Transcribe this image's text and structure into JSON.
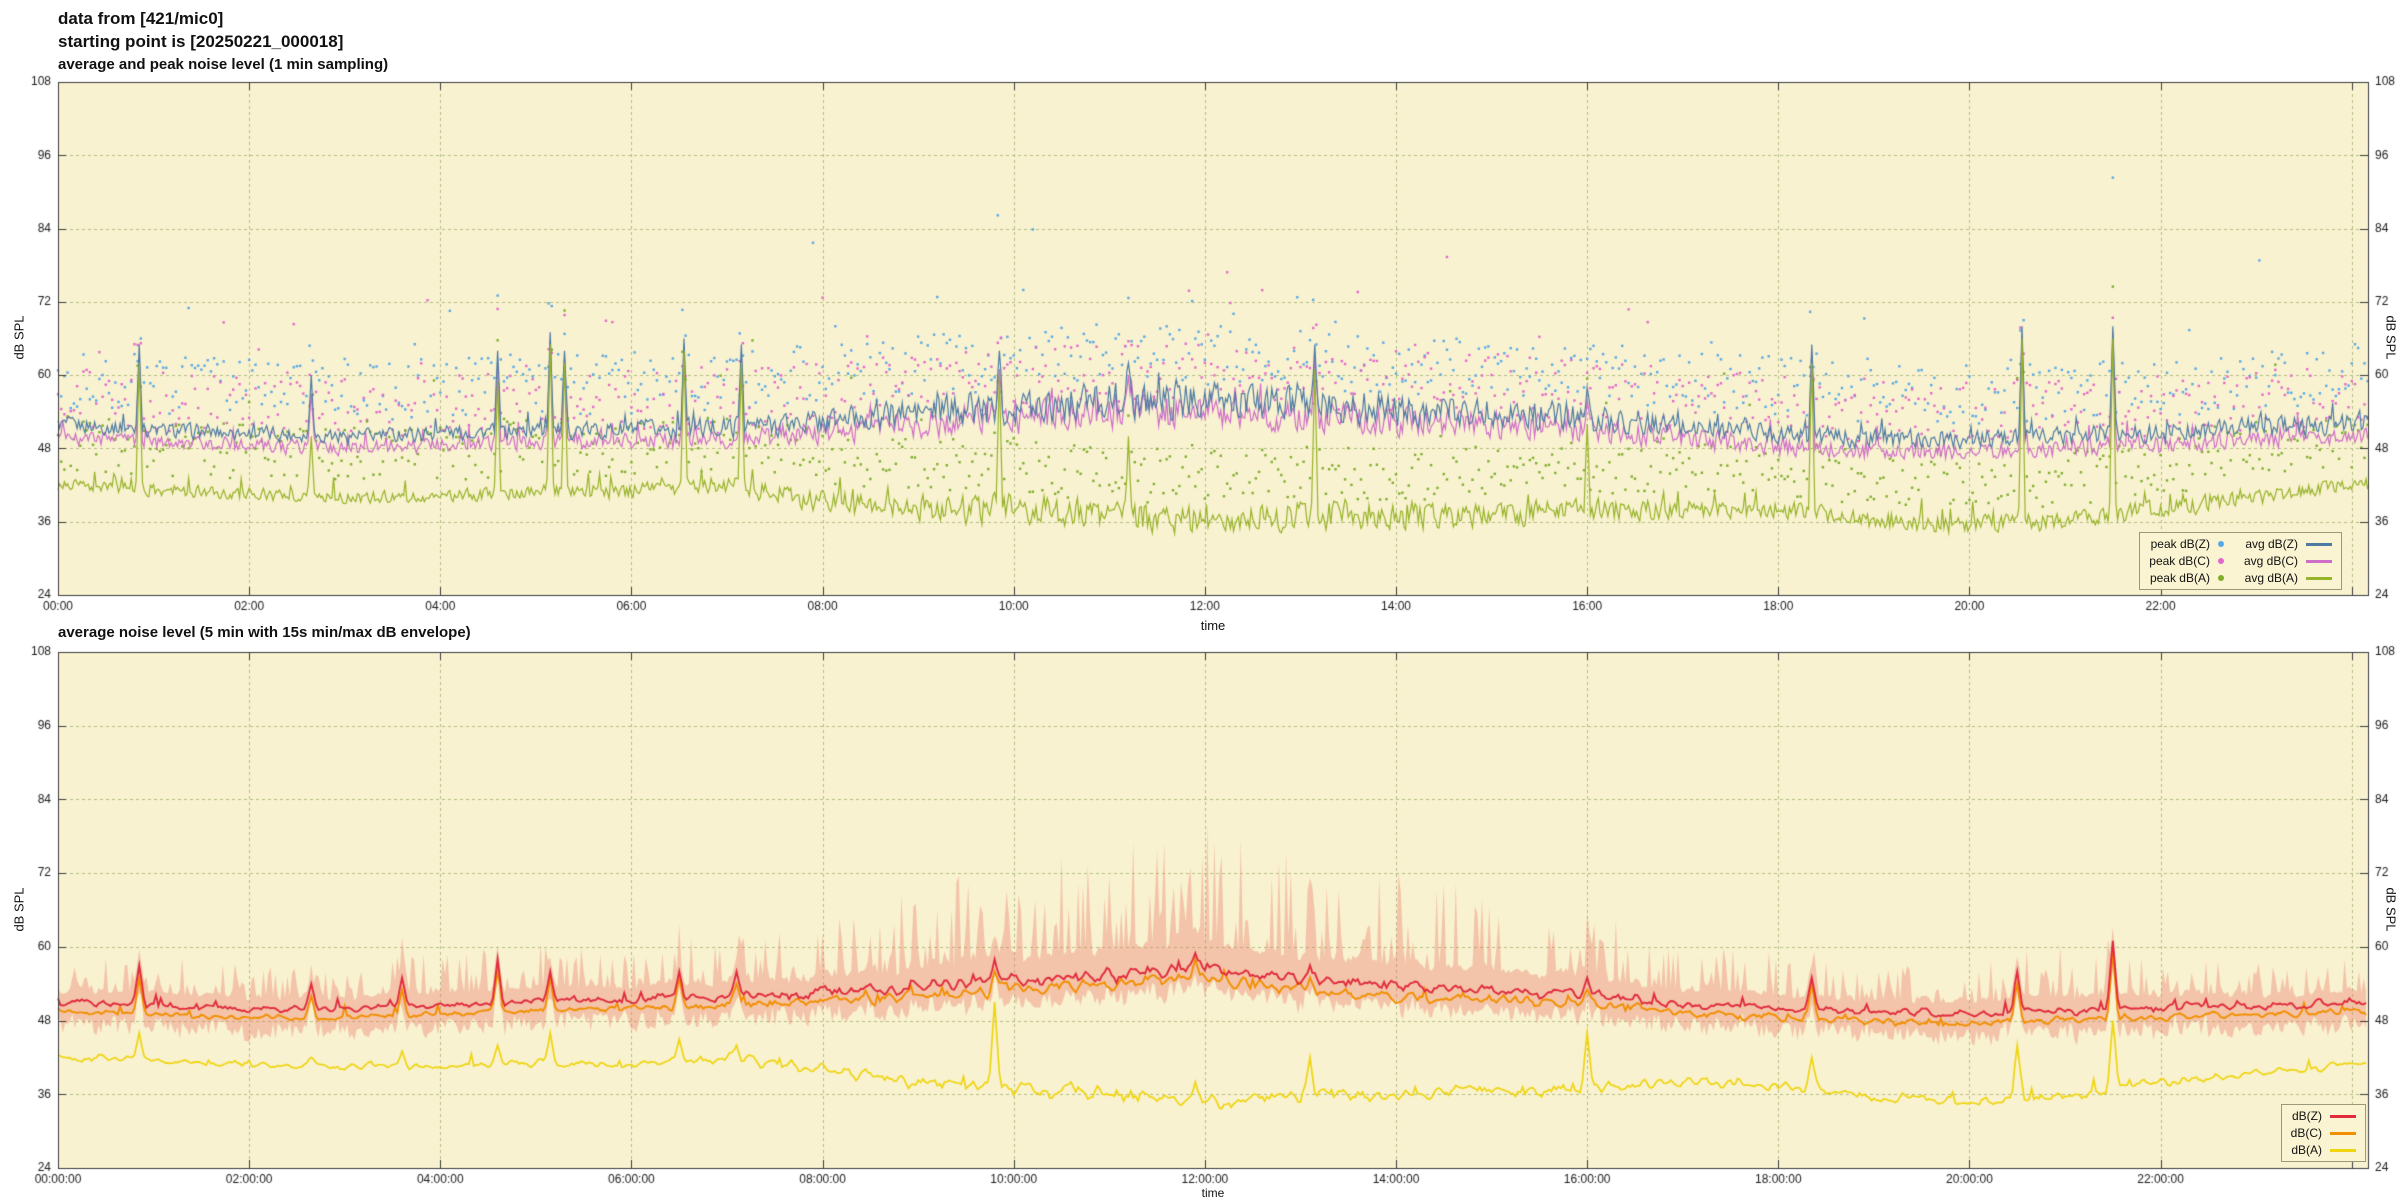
{
  "header": {
    "line1": "data from [421/mic0]",
    "line2": "starting point is [20250221_000018]"
  },
  "style": {
    "plot_bg": "#f9f2d0",
    "grid": "#b2bf83",
    "border": "#3a3a3a",
    "text": "#1a1a1a",
    "envelope": "rgba(234,120,104,0.38)"
  },
  "chart_data": [
    {
      "type": "line",
      "title": "average and peak noise level (1 min sampling)",
      "xlabel": "time",
      "ylabel": "dB SPL",
      "ylabel_right": "dB SPL",
      "xlim": [
        0,
        24.17
      ],
      "ylim": [
        24,
        108
      ],
      "grid": true,
      "yticks": [
        24,
        36,
        48,
        60,
        72,
        84,
        96,
        108
      ],
      "xtick_hours": [
        0,
        2,
        4,
        6,
        8,
        10,
        12,
        14,
        16,
        18,
        20,
        22,
        24
      ],
      "xtick_labels": [
        "00:00",
        "02:00",
        "04:00",
        "06:00",
        "08:00",
        "10:00",
        "12:00",
        "14:00",
        "16:00",
        "18:00",
        "20:00",
        "22:00",
        ""
      ],
      "anchor_hours": [
        0,
        1,
        2,
        3,
        4,
        5,
        6,
        7,
        8,
        9,
        10,
        11,
        12,
        13,
        14,
        15,
        16,
        17,
        18,
        19,
        20,
        21,
        22,
        23,
        24
      ],
      "series": [
        {
          "name": "avg dB(Z)",
          "type": "line",
          "color": "#4e7ba3",
          "width": 1.2,
          "spike_key": "z",
          "values": [
            52,
            51,
            50.5,
            50,
            50.5,
            51,
            51,
            51.5,
            52.5,
            54,
            55,
            56,
            56,
            55,
            54.5,
            54,
            53,
            51.5,
            50.5,
            49.5,
            49.5,
            50,
            50.5,
            51.5,
            52
          ],
          "jitter": [
            1.5,
            1.5,
            1.5,
            1.5,
            1.5,
            1.5,
            1.8,
            2.0,
            2.5,
            3.0,
            3.5,
            3.5,
            3.5,
            3.5,
            3.2,
            3.0,
            2.8,
            2.2,
            2.0,
            1.8,
            1.8,
            1.8,
            2.0,
            2.0,
            2.0
          ]
        },
        {
          "name": "avg dB(C)",
          "type": "line",
          "color": "#cf6ec8",
          "width": 1.2,
          "spike_key": "c",
          "values": [
            50,
            49,
            48.5,
            48,
            48.5,
            49,
            49,
            49.5,
            50.5,
            52,
            53,
            54,
            54,
            53,
            52.5,
            52,
            51,
            49.5,
            48.5,
            47.5,
            47.5,
            48,
            48.5,
            49.5,
            50
          ],
          "jitter": [
            1.4,
            1.4,
            1.4,
            1.4,
            1.4,
            1.4,
            1.6,
            1.8,
            2.2,
            2.7,
            3.2,
            3.2,
            3.2,
            3.2,
            2.9,
            2.7,
            2.5,
            2.0,
            1.8,
            1.6,
            1.6,
            1.6,
            1.8,
            1.8,
            1.8
          ]
        },
        {
          "name": "avg dB(A)",
          "type": "line",
          "color": "#97b329",
          "width": 1.2,
          "spike_key": "a",
          "values": [
            42,
            41,
            40.5,
            40,
            40,
            41,
            41,
            42,
            39.5,
            38,
            38,
            37,
            36,
            37,
            37,
            37,
            38,
            38,
            38,
            36,
            35.5,
            36,
            38,
            40,
            42
          ],
          "jitter": [
            1.2,
            1.2,
            1.2,
            1.2,
            1.2,
            1.3,
            1.5,
            1.8,
            2.2,
            2.5,
            2.8,
            2.8,
            2.8,
            2.8,
            2.6,
            2.4,
            2.2,
            2.0,
            1.8,
            1.8,
            1.8,
            1.8,
            1.8,
            1.5,
            1.3
          ]
        },
        {
          "name": "peak dB(Z)",
          "type": "points",
          "color": "#57a9e6",
          "base": "avg dB(Z)",
          "offset": 7.5,
          "spread": 5,
          "outlier_rate": 0.03,
          "outlier_extra": 16
        },
        {
          "name": "peak dB(C)",
          "type": "points",
          "color": "#e468ca",
          "base": "avg dB(C)",
          "offset": 6.5,
          "spread": 5,
          "outlier_rate": 0.025,
          "outlier_extra": 14
        },
        {
          "name": "peak dB(A)",
          "type": "points",
          "color": "#7fae2e",
          "base": "avg dB(A)",
          "offset": 7,
          "spread": 4.5,
          "outlier_rate": 0.02,
          "outlier_extra": 12
        }
      ],
      "spikes": [
        {
          "t": 0.85,
          "z": 65,
          "c": 63,
          "a": 62
        },
        {
          "t": 2.65,
          "z": 60,
          "c": 57,
          "a": 50
        },
        {
          "t": 4.6,
          "z": 64,
          "c": 62,
          "a": 59
        },
        {
          "t": 5.15,
          "z": 67,
          "c": 66,
          "a": 65
        },
        {
          "t": 5.3,
          "z": 64,
          "c": 63,
          "a": 62
        },
        {
          "t": 6.55,
          "z": 66,
          "c": 65,
          "a": 64
        },
        {
          "t": 7.15,
          "z": 65,
          "c": 63,
          "a": 62
        },
        {
          "t": 9.85,
          "z": 64,
          "c": 61,
          "a": 60
        },
        {
          "t": 11.2,
          "z": 62,
          "c": 60,
          "a": 50
        },
        {
          "t": 13.15,
          "z": 65,
          "c": 63,
          "a": 61
        },
        {
          "t": 16.0,
          "z": 58,
          "c": 56,
          "a": 52
        },
        {
          "t": 18.35,
          "z": 65,
          "c": 64,
          "a": 62
        },
        {
          "t": 20.55,
          "z": 68,
          "c": 66,
          "a": 66
        },
        {
          "t": 21.5,
          "z": 68,
          "c": 67,
          "a": 66
        }
      ],
      "draw_order": [
        "avg dB(C)",
        "avg dB(Z)",
        "avg dB(A)"
      ],
      "legend": {
        "position": "bottom-right",
        "entries": [
          {
            "label": "peak dB(Z)",
            "marker": "dot",
            "color": "#57a9e6"
          },
          {
            "label": "avg dB(Z)",
            "marker": "line",
            "color": "#4e7ba3"
          },
          {
            "label": "peak dB(C)",
            "marker": "dot",
            "color": "#e468ca"
          },
          {
            "label": "avg dB(C)",
            "marker": "line",
            "color": "#cf6ec8"
          },
          {
            "label": "peak dB(A)",
            "marker": "dot",
            "color": "#7fae2e"
          },
          {
            "label": "avg dB(A)",
            "marker": "line",
            "color": "#97b329"
          }
        ]
      }
    },
    {
      "type": "line",
      "title": "average noise level (5 min with 15s min/max dB envelope)",
      "xlabel": "time",
      "ylabel": "dB SPL",
      "ylabel_right": "dB SPL",
      "xlim": [
        0,
        24.17
      ],
      "ylim": [
        24,
        108
      ],
      "grid": true,
      "yticks": [
        24,
        36,
        48,
        60,
        72,
        84,
        96,
        108
      ],
      "xtick_hours": [
        0,
        2,
        4,
        6,
        8,
        10,
        12,
        14,
        16,
        18,
        20,
        22,
        24
      ],
      "xtick_labels": [
        "00:00:00",
        "02:00:00",
        "04:00:00",
        "06:00:00",
        "08:00:00",
        "10:00:00",
        "12:00:00",
        "14:00:00",
        "16:00:00",
        "18:00:00",
        "20:00:00",
        "22:00:00",
        ""
      ],
      "anchor_hours": [
        0,
        1,
        2,
        3,
        4,
        5,
        6,
        7,
        8,
        9,
        10,
        11,
        12,
        13,
        14,
        15,
        16,
        17,
        18,
        19,
        20,
        21,
        22,
        23,
        24
      ],
      "series": [
        {
          "name": "dB(Z)",
          "type": "line",
          "color": "#e12b3c",
          "width": 1.9,
          "spike_key": "z",
          "values": [
            51,
            50.5,
            50,
            50,
            50.5,
            51,
            51.5,
            52,
            52.5,
            53.5,
            54.5,
            55.5,
            56.5,
            54.5,
            53.5,
            53,
            52.5,
            50.5,
            50,
            49.5,
            49,
            49.5,
            50,
            50.5,
            51
          ],
          "jitter": [
            0.8,
            0.8,
            0.8,
            0.8,
            0.8,
            0.9,
            1.0,
            1.1,
            1.3,
            1.5,
            1.6,
            1.7,
            1.7,
            1.6,
            1.5,
            1.5,
            1.4,
            1.2,
            1.0,
            1.0,
            1.0,
            1.0,
            1.1,
            1.1,
            1.1
          ]
        },
        {
          "name": "dB(C)",
          "type": "line",
          "color": "#f28f00",
          "width": 1.9,
          "spike_key": "c",
          "values": [
            49.5,
            49,
            48.5,
            48.5,
            49,
            49.5,
            50,
            50.5,
            51,
            52,
            53,
            54,
            55,
            53,
            52,
            51.5,
            51,
            49,
            48.5,
            48,
            47.5,
            48,
            48.5,
            49,
            49.5
          ],
          "jitter": [
            0.7,
            0.7,
            0.7,
            0.7,
            0.7,
            0.8,
            0.9,
            1.0,
            1.2,
            1.4,
            1.5,
            1.6,
            1.6,
            1.5,
            1.4,
            1.4,
            1.3,
            1.1,
            0.9,
            0.9,
            0.9,
            0.9,
            1.0,
            1.0,
            1.0
          ]
        },
        {
          "name": "dB(A)",
          "type": "line",
          "color": "#efd510",
          "width": 1.7,
          "spike_key": "a",
          "values": [
            42,
            41.5,
            41,
            40.5,
            40.5,
            41,
            41,
            42,
            40,
            38,
            37,
            36,
            35,
            36,
            36,
            36.5,
            37,
            38,
            37.5,
            35.5,
            35,
            35.5,
            38,
            39.5,
            41
          ],
          "jitter": [
            0.8,
            0.8,
            0.8,
            0.8,
            0.8,
            0.9,
            1.0,
            1.2,
            1.4,
            1.6,
            1.8,
            1.8,
            1.8,
            1.7,
            1.6,
            1.5,
            1.4,
            1.3,
            1.2,
            1.2,
            1.2,
            1.2,
            1.2,
            1.0,
            0.9
          ]
        }
      ],
      "spikes": [
        {
          "t": 0.85,
          "z": 57,
          "c": 55,
          "a": 46
        },
        {
          "t": 2.65,
          "z": 54,
          "c": 52,
          "a": 42
        },
        {
          "t": 3.6,
          "z": 55,
          "c": 53,
          "a": 43
        },
        {
          "t": 4.6,
          "z": 58,
          "c": 56,
          "a": 44
        },
        {
          "t": 5.15,
          "z": 56,
          "c": 55,
          "a": 46
        },
        {
          "t": 6.5,
          "z": 56,
          "c": 55,
          "a": 45
        },
        {
          "t": 7.1,
          "z": 56,
          "c": 54,
          "a": 44
        },
        {
          "t": 9.8,
          "z": 58,
          "c": 56,
          "a": 51
        },
        {
          "t": 11.9,
          "z": 59,
          "c": 58,
          "a": 38
        },
        {
          "t": 13.1,
          "z": 57,
          "c": 55,
          "a": 42
        },
        {
          "t": 16.0,
          "z": 55,
          "c": 53,
          "a": 46
        },
        {
          "t": 18.35,
          "z": 55,
          "c": 54,
          "a": 42
        },
        {
          "t": 20.5,
          "z": 56,
          "c": 54,
          "a": 44
        },
        {
          "t": 21.5,
          "z": 61,
          "c": 59,
          "a": 48
        }
      ],
      "envelope": {
        "base": "dB(Z)",
        "color": "rgba(234,120,104,0.38)",
        "extra_min": 3,
        "extra_max": [
          6,
          8,
          6,
          5,
          8,
          8,
          8,
          9,
          11,
          16,
          19,
          21,
          22,
          19,
          18,
          16,
          13,
          9,
          8,
          6,
          8,
          10,
          7,
          6,
          6
        ]
      },
      "draw_order": [
        "dB(C)",
        "dB(Z)",
        "dB(A)"
      ],
      "legend": {
        "position": "bottom-right",
        "entries": [
          {
            "label": "dB(Z)",
            "marker": "line",
            "color": "#e12b3c"
          },
          {
            "label": "dB(C)",
            "marker": "line",
            "color": "#f28f00"
          },
          {
            "label": "dB(A)",
            "marker": "line",
            "color": "#efd510"
          }
        ]
      }
    }
  ]
}
